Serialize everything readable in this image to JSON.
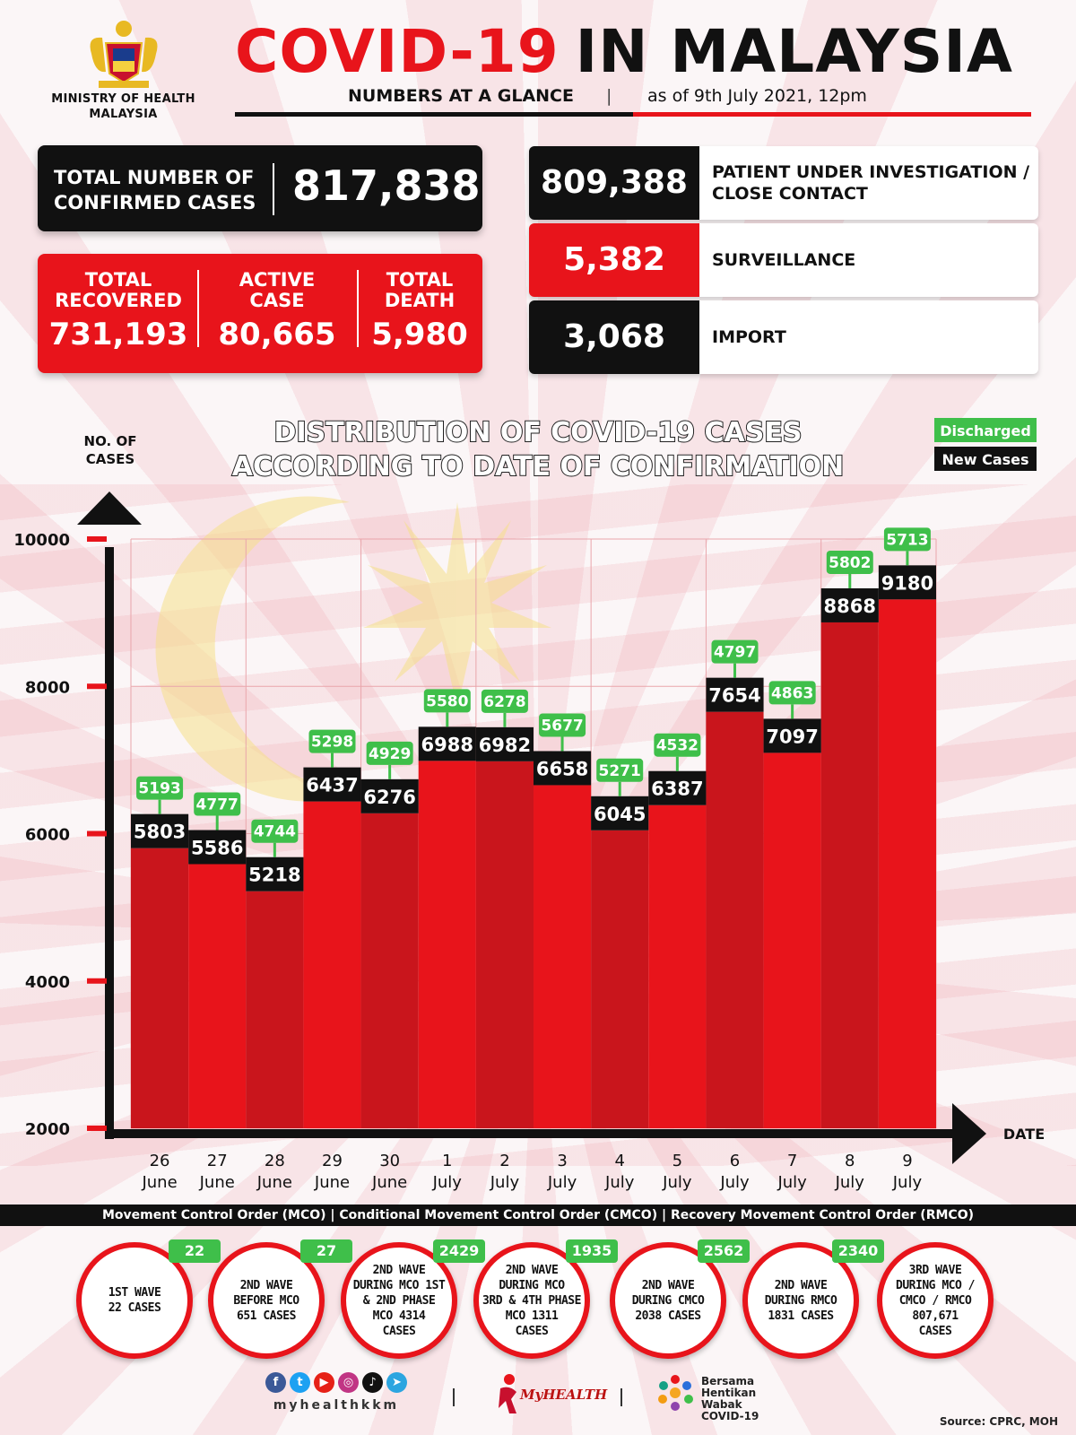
{
  "header": {
    "ministry_line1": "MINISTRY OF HEALTH",
    "ministry_line2": "MALAYSIA",
    "title_red": "COVID-19",
    "title_black": "IN MALAYSIA",
    "subtitle": "NUMBERS AT A GLANCE",
    "separator": "|",
    "as_of": "as of 9th July 2021, 12pm"
  },
  "totals": {
    "confirmed_label_1": "TOTAL NUMBER OF",
    "confirmed_label_2": "CONFIRMED CASES",
    "confirmed_value": "817,838",
    "recovered_label_1": "TOTAL",
    "recovered_label_2": "RECOVERED",
    "recovered_value": "731,193",
    "active_label_1": "ACTIVE",
    "active_label_2": "CASE",
    "active_value": "80,665",
    "death_label_1": "TOTAL",
    "death_label_2": "DEATH",
    "death_value": "5,980"
  },
  "breakdown": [
    {
      "value": "809,388",
      "label_1": "PATIENT UNDER INVESTIGATION /",
      "label_2": "CLOSE CONTACT",
      "color": "#111111"
    },
    {
      "value": "5,382",
      "label_1": "SURVEILLANCE",
      "label_2": "",
      "color": "#e8141b"
    },
    {
      "value": "3,068",
      "label_1": "IMPORT",
      "label_2": "",
      "color": "#111111"
    }
  ],
  "chart_data": {
    "type": "bar",
    "title_line1": "DISTRIBUTION OF COVID-19 CASES",
    "title_line2": "ACCORDING TO DATE OF CONFIRMATION",
    "ylabel_line1": "NO. OF",
    "ylabel_line2": "CASES",
    "xlabel": "DATE",
    "y_ticks": [
      2000,
      4000,
      6000,
      8000,
      10000
    ],
    "ylim": [
      2000,
      10000
    ],
    "legend": [
      "Discharged",
      "New Cases"
    ],
    "categories": [
      [
        "26",
        "June"
      ],
      [
        "27",
        "June"
      ],
      [
        "28",
        "June"
      ],
      [
        "29",
        "June"
      ],
      [
        "30",
        "June"
      ],
      [
        "1",
        "July"
      ],
      [
        "2",
        "July"
      ],
      [
        "3",
        "July"
      ],
      [
        "4",
        "July"
      ],
      [
        "5",
        "July"
      ],
      [
        "6",
        "July"
      ],
      [
        "7",
        "July"
      ],
      [
        "8",
        "July"
      ],
      [
        "9",
        "July"
      ]
    ],
    "series": [
      {
        "name": "New Cases",
        "values": [
          5803,
          5586,
          5218,
          6437,
          6276,
          6988,
          6982,
          6658,
          6045,
          6387,
          7654,
          7097,
          8868,
          9180
        ]
      },
      {
        "name": "Discharged",
        "values": [
          5193,
          4777,
          4744,
          5298,
          4929,
          5580,
          6278,
          5677,
          5271,
          4532,
          4797,
          4863,
          5802,
          5713
        ]
      }
    ],
    "colors": {
      "bar": "#e8141b",
      "bar_dark": "#c9151c",
      "new_label": "#111111",
      "discharged": "#3fbf4a"
    }
  },
  "mco_bar": "Movement Control Order (MCO) | Conditional Movement Control Order (CMCO) | Recovery Movement Control Order (RMCO)",
  "waves": [
    {
      "lines": [
        "1ST WAVE",
        "22 CASES"
      ],
      "badge": "22"
    },
    {
      "lines": [
        "2ND WAVE",
        "BEFORE MCO",
        "651 CASES"
      ],
      "badge": "27"
    },
    {
      "lines": [
        "2ND WAVE",
        "DURING MCO 1ST",
        "& 2ND PHASE",
        "MCO 4314",
        "CASES"
      ],
      "badge": "2429"
    },
    {
      "lines": [
        "2ND WAVE",
        "DURING MCO",
        "3RD & 4TH PHASE",
        "MCO 1311",
        "CASES"
      ],
      "badge": "1935"
    },
    {
      "lines": [
        "2ND WAVE",
        "DURING CMCO",
        "2038 CASES"
      ],
      "badge": "2562"
    },
    {
      "lines": [
        "2ND WAVE",
        "DURING RMCO",
        "1831 CASES"
      ],
      "badge": "2340"
    },
    {
      "lines": [
        "3RD WAVE",
        "DURING MCO /",
        "CMCO / RMCO",
        "807,671",
        "CASES"
      ],
      "badge": ""
    }
  ],
  "footer": {
    "handle": "myhealthkkm",
    "myhealth": "MyHEALTH",
    "bersama_1": "Bersama",
    "bersama_2": "Hentikan",
    "bersama_3": "Wabak",
    "bersama_4": "COVID-19",
    "source": "Source: CPRC, MOH",
    "social_icons": [
      "facebook-icon",
      "twitter-icon",
      "youtube-icon",
      "instagram-icon",
      "tiktok-icon",
      "telegram-icon"
    ]
  }
}
